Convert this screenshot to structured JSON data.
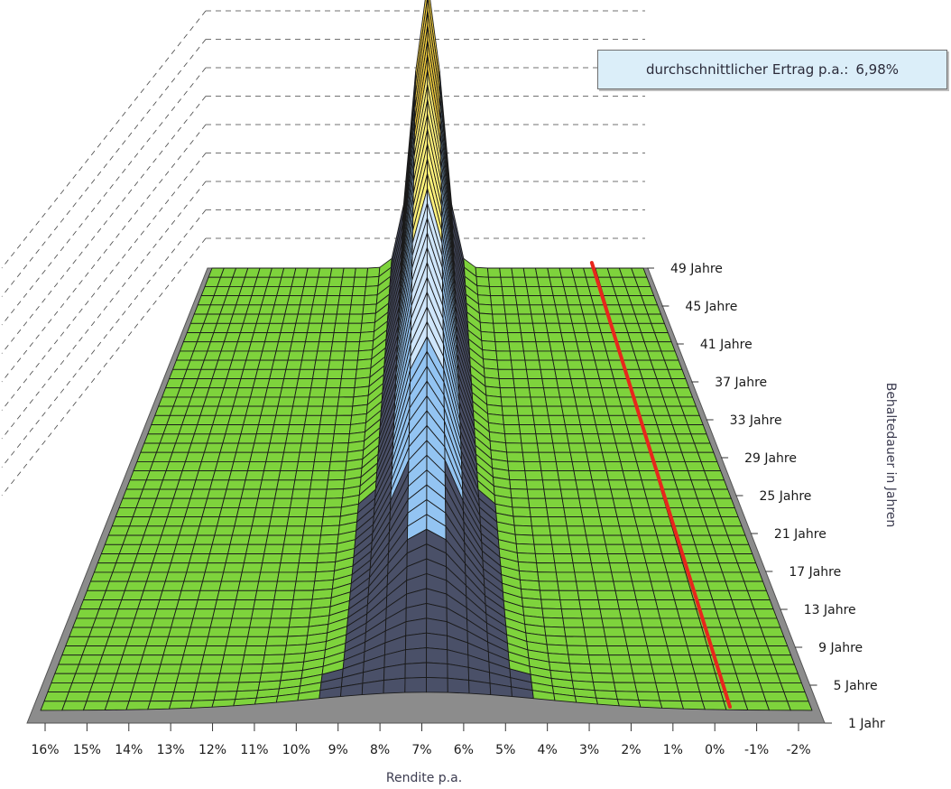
{
  "chart_data": {
    "type": "surface3d",
    "title": "",
    "xlabel": "Rendite p.a.",
    "ylabel": "Behaltedauer in Jahren",
    "x_tick_labels": [
      "16%",
      "15%",
      "14%",
      "13%",
      "12%",
      "11%",
      "10%",
      "9%",
      "8%",
      "7%",
      "6%",
      "5%",
      "4%",
      "3%",
      "2%",
      "1%",
      "0%",
      "-1%",
      "-2%"
    ],
    "y_tick_labels": [
      {
        "label": "1 Jahr",
        "years": 1
      },
      {
        "label": "5 Jahre",
        "years": 5
      },
      {
        "label": "9 Jahre",
        "years": 9
      },
      {
        "label": "13 Jahre",
        "years": 13
      },
      {
        "label": "17 Jahre",
        "years": 17
      },
      {
        "label": "21 Jahre",
        "years": 21
      },
      {
        "label": "25 Jahre",
        "years": 25
      },
      {
        "label": "29 Jahre",
        "years": 29
      },
      {
        "label": "33 Jahre",
        "years": 33
      },
      {
        "label": "37 Jahre",
        "years": 37
      },
      {
        "label": "41 Jahre",
        "years": 41
      },
      {
        "label": "45 Jahre",
        "years": 45
      },
      {
        "label": "49 Jahre",
        "years": 49
      }
    ],
    "x_range": [
      16,
      -2
    ],
    "y_range": [
      1,
      49
    ],
    "peak": {
      "x": 7,
      "years": 49
    },
    "zero_return_line": {
      "x": 0,
      "years_from": 1,
      "years_to": 49,
      "color": "#e8261c"
    },
    "band_colors": [
      "#7ed33c",
      "#4a5068",
      "#93c4f2",
      "#cfe6fb",
      "#fff27a",
      "#f5d13f",
      "#f2922a",
      "#8f9396"
    ],
    "grid": true
  },
  "annotation": {
    "label": "durchschnittlicher Ertrag p.a.:",
    "value": "6,98%"
  }
}
